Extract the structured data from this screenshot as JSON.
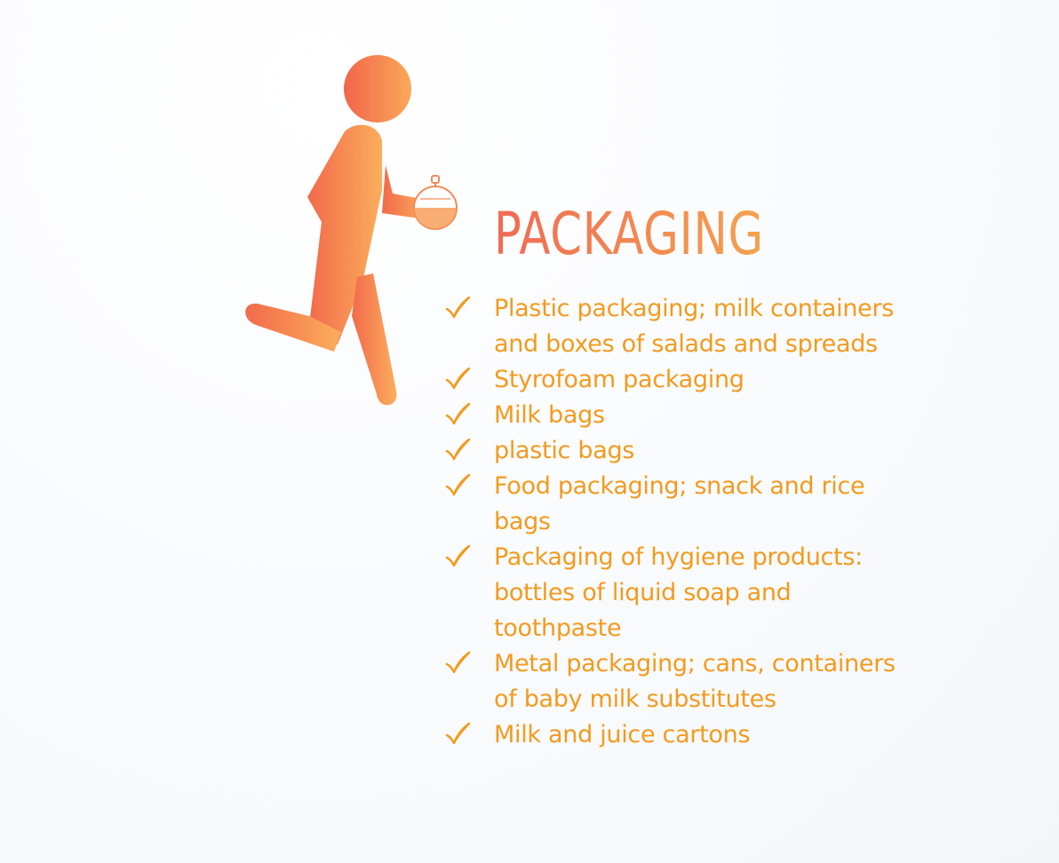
{
  "title": "PACKAGING",
  "colors": {
    "accent": "#F39A1E",
    "figure_start": "#F26A4B",
    "figure_end": "#FBAE5C",
    "title_red": "#F06A55",
    "title_orange": "#F4A24E"
  },
  "icons": {
    "bullet": "check-icon",
    "figure": "running-person-icon",
    "watch": "stopwatch-icon"
  },
  "items": [
    {
      "text": "Plastic packaging; milk containers\nand boxes of salads and spreads"
    },
    {
      "text": "Styrofoam packaging"
    },
    {
      "text": "Milk bags"
    },
    {
      "text": "plastic bags"
    },
    {
      "text": "Food packaging; snack and rice\nbags"
    },
    {
      "text": "Packaging of hygiene products:\nbottles of liquid soap and\ntoothpaste"
    },
    {
      "text": "Metal packaging; cans, containers\nof baby milk substitutes"
    },
    {
      "text": "Milk and juice cartons"
    }
  ]
}
